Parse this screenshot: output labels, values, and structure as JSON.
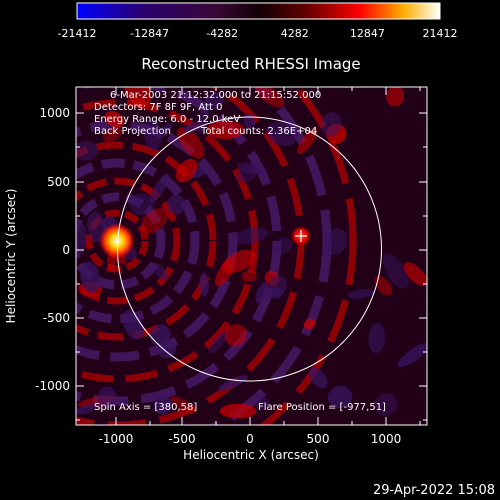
{
  "colorbar": {
    "tick_labels": [
      "-21412",
      "-12847",
      "-4282",
      "4282",
      "12847",
      "21412"
    ]
  },
  "plot": {
    "title": "Reconstructed RHESSI Image",
    "xlabel": "Heliocentric X (arcsec)",
    "ylabel": "Heliocentric Y (arcsec)",
    "x_ticks": [
      "-1000",
      "-500",
      "0",
      "500",
      "1000"
    ],
    "y_ticks": [
      "1000",
      "500",
      "0",
      "-500",
      "-1000"
    ],
    "x_range": [
      -1300,
      1300
    ],
    "y_range": [
      -1300,
      1300
    ],
    "info_lines": [
      "6-Mar-2003 21:12:32.000 to 21:15:52.000",
      "Detectors: 7F 8F 9F, Att 0",
      "Energy Range: 6.0 - 12.0 keV"
    ],
    "back_projection": "Back Projection",
    "total_counts": "Total counts: 2.36E+04",
    "spin_axis": "Spin Axis = [380,58]",
    "flare_position": "Flare Position = [-977,51]"
  },
  "timestamp": "29-Apr-2022 15:08"
}
